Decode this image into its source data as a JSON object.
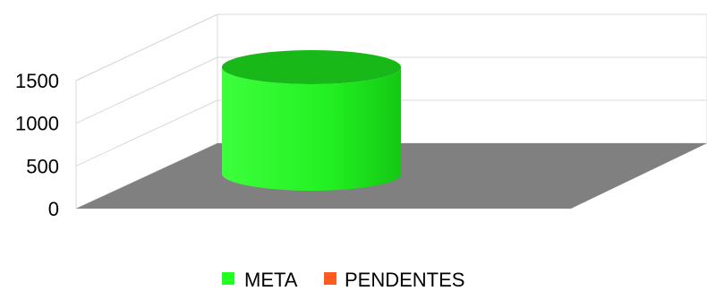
{
  "chart_data": {
    "type": "bar",
    "style": "3d-cylinder",
    "title": "",
    "xlabel": "",
    "ylabel": "",
    "categories": [
      ""
    ],
    "series": [
      {
        "name": "META",
        "values": [
          1500
        ],
        "color": "#22ff22"
      },
      {
        "name": "PENDENTES",
        "values": [
          0
        ],
        "color": "#ff5a1f"
      }
    ],
    "ylim": [
      0,
      1500
    ],
    "yticks": [
      "0",
      "500",
      "1000",
      "1500"
    ],
    "grid": true,
    "legend": "bottom",
    "floor_color": "#808080"
  }
}
